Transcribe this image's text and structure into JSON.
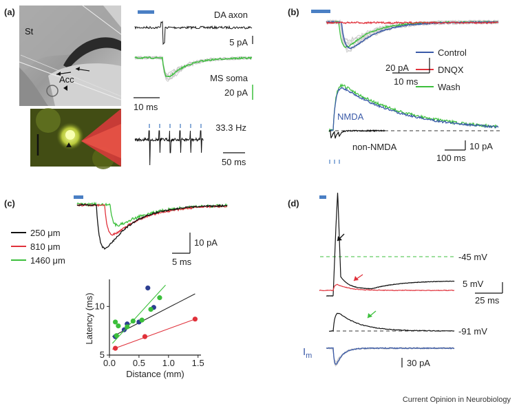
{
  "panels": {
    "a": {
      "label": "(a)",
      "photo_labels": {
        "st": "St",
        "acc": "Acc"
      },
      "traces": {
        "da_axon": "DA axon",
        "da_scale": "5 pA",
        "ms_soma": "MS soma",
        "ms_scale": "20 pA",
        "time_scale": "10 ms",
        "freq": "33.3 Hz",
        "freq_time": "50 ms"
      }
    },
    "b": {
      "label": "(b)",
      "legend": [
        "Control",
        "DNQX",
        "Wash"
      ],
      "scale": {
        "amp": "20 pA",
        "time": "10 ms",
        "amp2": "10 pA",
        "time2": "100 ms"
      },
      "labels": {
        "nmda": "NMDA",
        "non_nmda": "non-NMDA"
      }
    },
    "c": {
      "label": "(c)",
      "legend": [
        "250 μm",
        "810 μm",
        "1460 μm"
      ],
      "scale": {
        "amp": "10 pA",
        "time": "5 ms"
      }
    },
    "d": {
      "label": "(d)",
      "labels": {
        "v45": "-45 mV",
        "v91": "-91 mV",
        "im": "Im",
        "im_main": "I",
        "im_sub": "m"
      },
      "scale": {
        "amp": "5 mV",
        "time": "25 ms",
        "current": "30 pA"
      }
    }
  },
  "credit": "Current Opinion in Neurobiology",
  "colors": {
    "control": "#3a5aa8",
    "dnqx": "#e0303a",
    "wash": "#3bbf3b",
    "stim": "#4a7fc4"
  },
  "chart_data": {
    "type": "scatter",
    "title": "",
    "xlabel": "Distance (mm)",
    "ylabel": "Latency (ms)",
    "xlim": [
      0,
      1.55
    ],
    "ylim": [
      5,
      12.5
    ],
    "xticks": [
      0.0,
      0.5,
      1.0,
      1.5
    ],
    "yticks": [
      5,
      10
    ],
    "series": [
      {
        "color": "#2c3e91",
        "fit_color": "#222222",
        "x": [
          0.1,
          0.25,
          0.3,
          0.5,
          0.65,
          0.75
        ],
        "y": [
          6.9,
          7.6,
          8.2,
          8.4,
          11.9,
          9.9
        ],
        "fit": [
          [
            0.05,
            6.9
          ],
          [
            1.45,
            11.3
          ]
        ]
      },
      {
        "color": "#e0303a",
        "fit_color": "#e0303a",
        "x": [
          0.1,
          0.6,
          1.45
        ],
        "y": [
          5.7,
          6.9,
          8.7
        ],
        "fit": [
          [
            0.05,
            5.6
          ],
          [
            1.45,
            8.7
          ]
        ]
      },
      {
        "color": "#3bbf3b",
        "fit_color": "#3bbf3b",
        "x": [
          0.1,
          0.12,
          0.15,
          0.3,
          0.4,
          0.55,
          0.7,
          0.85
        ],
        "y": [
          8.4,
          7.0,
          8.0,
          7.9,
          8.5,
          8.6,
          9.7,
          10.9
        ],
        "fit": [
          [
            0.05,
            6.2
          ],
          [
            0.95,
            12.2
          ]
        ]
      }
    ]
  }
}
